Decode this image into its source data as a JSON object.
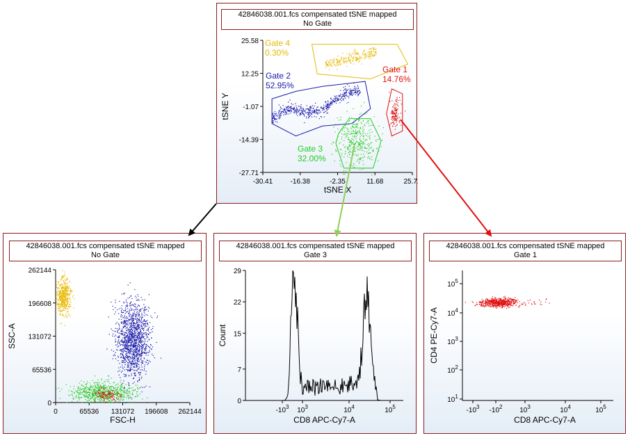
{
  "colors": {
    "gate1": "#e01010",
    "gate2": "#1a1aaa",
    "gate3": "#22cc22",
    "gate4": "#e8b800",
    "panel_border": "#8b1a1a",
    "arrow_black": "#000000",
    "arrow_green": "#8ed05a",
    "arrow_red": "#e01010"
  },
  "panels": {
    "top": {
      "title_line1": "42846038.001.fcs compensated tSNE mapped",
      "title_line2": "No Gate"
    },
    "bottom_left": {
      "title_line1": "42846038.001.fcs compensated tSNE mapped",
      "title_line2": "No Gate"
    },
    "bottom_middle": {
      "title_line1": "42846038.001.fcs compensated tSNE mapped",
      "title_line2": "Gate 3"
    },
    "bottom_right": {
      "title_line1": "42846038.001.fcs compensated tSNE mapped",
      "title_line2": "Gate 1"
    }
  },
  "chart_data": [
    {
      "id": "tsne",
      "type": "scatter",
      "xlabel": "tSNE X",
      "ylabel": "tSNE Y",
      "xlim": [
        -30.41,
        25.72
      ],
      "ylim": [
        -27.71,
        25.58
      ],
      "x_ticks": [
        "-30.41",
        "-16.38",
        "-2.35",
        "11.68",
        "25.72"
      ],
      "y_ticks": [
        "25.58",
        "12.25",
        "-1.07",
        "-14.39",
        "-27.71"
      ],
      "gates": [
        {
          "name": "Gate 1",
          "percent": "14.76%",
          "color_key": "gate1"
        },
        {
          "name": "Gate 2",
          "percent": "52.95%",
          "color_key": "gate2"
        },
        {
          "name": "Gate 3",
          "percent": "32.00%",
          "color_key": "gate3"
        },
        {
          "name": "Gate 4",
          "percent": "0.30%",
          "color_key": "gate4"
        }
      ],
      "clusters": [
        {
          "gate": "Gate 1",
          "x_range": [
            17,
            21
          ],
          "y_range": [
            -10,
            2
          ],
          "count": 140
        },
        {
          "gate": "Gate 2",
          "x_range": [
            -27,
            6
          ],
          "y_range": [
            -9,
            7
          ],
          "count": 520
        },
        {
          "gate": "Gate 3",
          "x_range": [
            -3,
            12
          ],
          "y_range": [
            -25,
            -4
          ],
          "count": 380
        },
        {
          "gate": "Gate 4",
          "x_range": [
            -7,
            12
          ],
          "y_range": [
            14,
            23
          ],
          "count": 260
        }
      ]
    },
    {
      "id": "fsc_ssc",
      "type": "scatter",
      "xlabel": "FSC-H",
      "ylabel": "SSC-A",
      "xlim": [
        0,
        262144
      ],
      "ylim": [
        0,
        262144
      ],
      "x_ticks": [
        "0",
        "65536",
        "131072",
        "196608",
        "262144"
      ],
      "y_ticks": [
        "0",
        "65536",
        "131072",
        "196608",
        "262144"
      ],
      "clusters": [
        {
          "gate": "Gate 4",
          "x_center": 15000,
          "y_center": 210000,
          "count": 500
        },
        {
          "gate": "Gate 2",
          "x_center": 150000,
          "y_center": 125000,
          "count": 1400
        },
        {
          "gate": "Gate 3",
          "x_center": 90000,
          "y_center": 20000,
          "count": 700
        },
        {
          "gate": "Gate 1",
          "x_center": 100000,
          "y_center": 15000,
          "count": 120
        }
      ]
    },
    {
      "id": "cd8_hist",
      "type": "area",
      "xlabel": "CD8 APC-Cy7-A",
      "ylabel": "Count",
      "ylim": [
        0,
        29
      ],
      "y_ticks": [
        "0",
        "7",
        "15",
        "22",
        "29"
      ],
      "x_ticks": [
        {
          "base": "-10",
          "exp": "3"
        },
        {
          "base": "10",
          "exp": "3"
        },
        {
          "base": "10",
          "exp": "4"
        },
        {
          "base": "10",
          "exp": "5"
        }
      ],
      "peaks": [
        {
          "center": 500,
          "height": 28
        },
        {
          "center": 15000,
          "height": 20
        }
      ]
    },
    {
      "id": "cd8_cd4",
      "type": "scatter",
      "xlabel": "CD8 APC-Cy7-A",
      "ylabel": "CD4 PE-Cy7-A",
      "x_ticks": [
        {
          "base": "-10",
          "exp": "3"
        },
        {
          "base": "-10",
          "exp": "2"
        },
        {
          "base": "10",
          "exp": "3"
        },
        {
          "base": "10",
          "exp": "4"
        },
        {
          "base": "10",
          "exp": "5"
        }
      ],
      "y_ticks": [
        {
          "base": "10",
          "exp": "1"
        },
        {
          "base": "10",
          "exp": "2"
        },
        {
          "base": "10",
          "exp": "3"
        },
        {
          "base": "10",
          "exp": "4"
        },
        {
          "base": "10",
          "exp": "5"
        }
      ],
      "clusters": [
        {
          "gate": "Gate 1",
          "cd8_center": 0,
          "cd4_center": 20000,
          "count": 600
        }
      ]
    }
  ]
}
